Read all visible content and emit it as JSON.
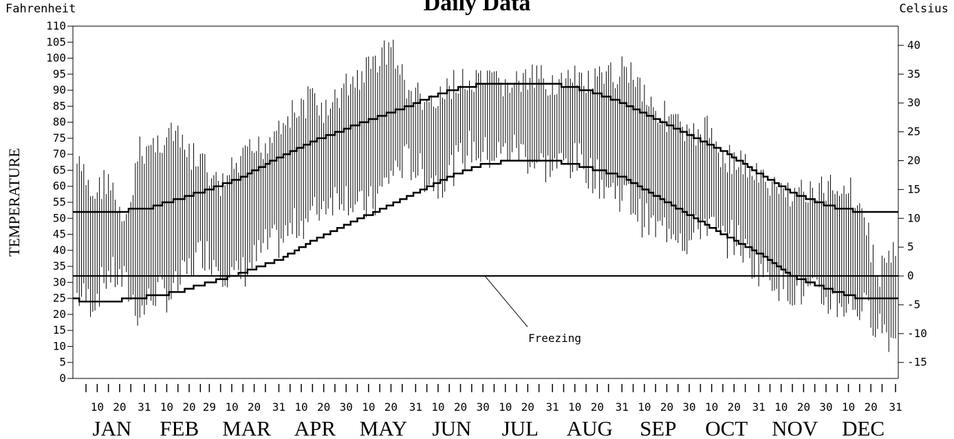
{
  "chart_data": {
    "type": "bar",
    "subtype": "daily temperature range (floating bars) with normal high / normal low step lines",
    "title": "Daily Data",
    "ylabel": "TEMPERATURE",
    "y_left_unit": "Fahrenheit",
    "y_right_unit": "Celsius",
    "ylim": [
      0,
      110
    ],
    "y_left_ticks": [
      0,
      5,
      10,
      15,
      20,
      25,
      30,
      35,
      40,
      45,
      50,
      55,
      60,
      65,
      70,
      75,
      80,
      85,
      90,
      95,
      100,
      105,
      110
    ],
    "y_right_ticks": [
      -15,
      -10,
      -5,
      0,
      5,
      10,
      15,
      20,
      25,
      30,
      35,
      40
    ],
    "months": [
      "JAN",
      "FEB",
      "MAR",
      "APR",
      "MAY",
      "JUN",
      "JUL",
      "AUG",
      "SEP",
      "OCT",
      "NOV",
      "DEC"
    ],
    "month_day_labels": [
      [
        "10",
        "20",
        "31"
      ],
      [
        "10",
        "20",
        "29"
      ],
      [
        "10",
        "20",
        "31"
      ],
      [
        "10",
        "20",
        "30"
      ],
      [
        "10",
        "20",
        "31"
      ],
      [
        "10",
        "20",
        "30"
      ],
      [
        "10",
        "20",
        "31"
      ],
      [
        "10",
        "20",
        "31"
      ],
      [
        "10",
        "20",
        "30"
      ],
      [
        "10",
        "20",
        "31"
      ],
      [
        "10",
        "20",
        "30"
      ],
      [
        "10",
        "20",
        "31"
      ]
    ],
    "month_lengths": [
      31,
      29,
      31,
      30,
      31,
      30,
      31,
      31,
      30,
      31,
      30,
      31
    ],
    "freezing": {
      "value": 32,
      "label": "Freezing"
    },
    "normal_high": {
      "day_of_year": [
        1,
        15,
        32,
        46,
        60,
        75,
        91,
        106,
        121,
        137,
        152,
        167,
        182,
        197,
        213,
        228,
        244,
        259,
        274,
        289,
        305,
        320,
        335,
        350,
        366
      ],
      "values": [
        51.5,
        52,
        53,
        56,
        59,
        63,
        69,
        74,
        78,
        82,
        86,
        90,
        92,
        92,
        92,
        90,
        86,
        81,
        76,
        71,
        64,
        58,
        54,
        52,
        51.5
      ]
    },
    "normal_low": {
      "day_of_year": [
        1,
        15,
        32,
        46,
        60,
        75,
        91,
        106,
        121,
        137,
        152,
        167,
        182,
        197,
        213,
        228,
        244,
        259,
        274,
        289,
        305,
        320,
        335,
        350,
        366
      ],
      "values": [
        24.5,
        24,
        25.5,
        27,
        30,
        33,
        37,
        43,
        48,
        53,
        58,
        63,
        67,
        68,
        68,
        66,
        63,
        57,
        51,
        45,
        39,
        32,
        28,
        25,
        24.5
      ]
    },
    "daily_ranges_generated": true,
    "daily_ranges": {
      "day_of_year": [
        1,
        8,
        15,
        22,
        29,
        36,
        43,
        50,
        57,
        64,
        71,
        78,
        85,
        92,
        99,
        106,
        113,
        120,
        127,
        134,
        141,
        148,
        155,
        162,
        169,
        176,
        183,
        190,
        197,
        204,
        211,
        218,
        225,
        232,
        239,
        246,
        253,
        260,
        267,
        274,
        281,
        288,
        295,
        302,
        309,
        316,
        323,
        330,
        337,
        344,
        351,
        358,
        365
      ],
      "high": [
        72,
        62,
        68,
        50,
        76,
        78,
        82,
        75,
        72,
        64,
        70,
        75,
        78,
        86,
        88,
        93,
        87,
        96,
        99,
        104,
        109,
        95,
        92,
        90,
        98,
        96,
        97,
        97,
        97,
        98,
        98,
        97,
        98,
        97,
        99,
        103,
        96,
        88,
        86,
        79,
        84,
        75,
        73,
        70,
        65,
        63,
        64,
        62,
        65,
        66,
        58,
        37,
        45
      ],
      "low": [
        20,
        18,
        27,
        24,
        14,
        21,
        20,
        27,
        34,
        30,
        25,
        29,
        35,
        37,
        42,
        45,
        50,
        52,
        47,
        49,
        58,
        62,
        58,
        55,
        60,
        66,
        64,
        64,
        66,
        62,
        60,
        61,
        62,
        57,
        53,
        51,
        44,
        40,
        42,
        36,
        44,
        37,
        38,
        30,
        27,
        23,
        21,
        20,
        18,
        17,
        16,
        12,
        6
      ]
    }
  }
}
